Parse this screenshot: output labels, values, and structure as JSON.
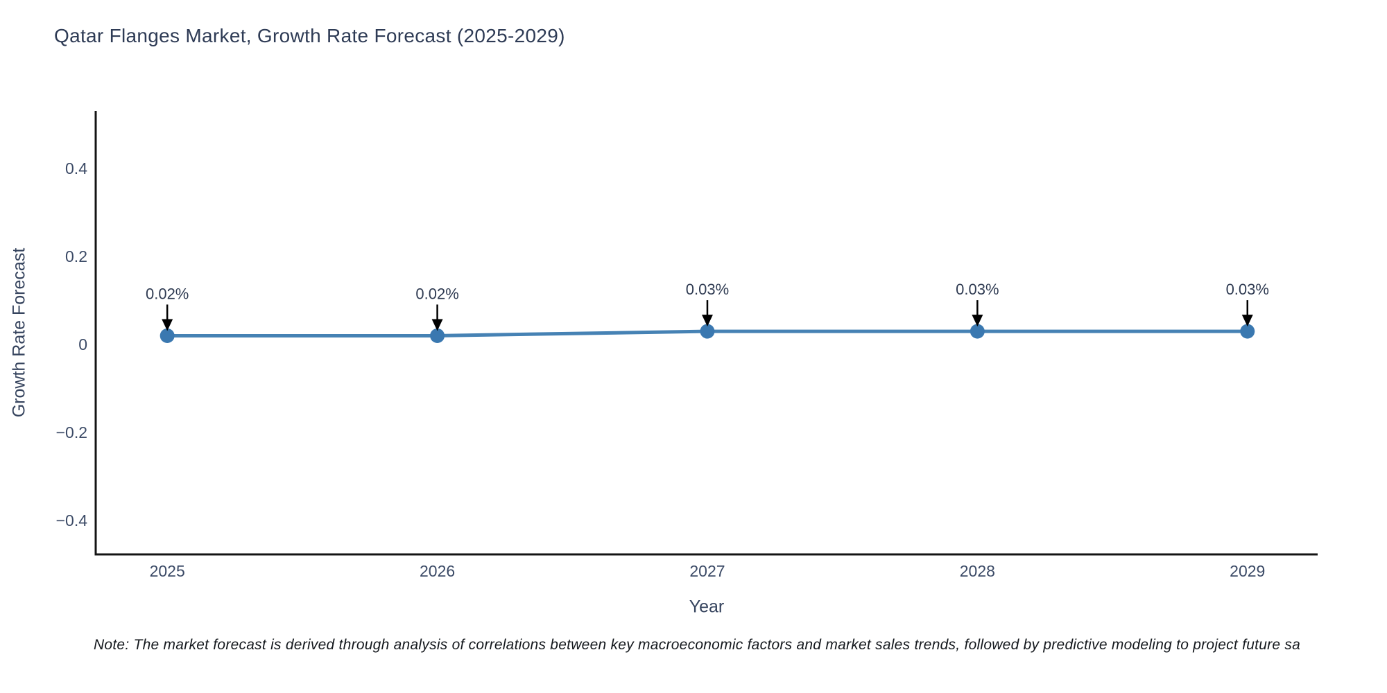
{
  "title": "Qatar Flanges Market, Growth Rate Forecast (2025-2029)",
  "note": "Note: The market forecast is derived through analysis of correlations between key macroeconomic factors and market sales trends, followed by predictive modeling to project future sa",
  "chart_data": {
    "type": "line",
    "title": "Qatar Flanges Market, Growth Rate Forecast (2025-2029)",
    "xlabel": "Year",
    "ylabel": "Growth Rate Forecast",
    "x": [
      2025,
      2026,
      2027,
      2028,
      2029
    ],
    "x_tick_labels": [
      "2025",
      "2026",
      "2027",
      "2028",
      "2029"
    ],
    "series": [
      {
        "name": "Growth Rate Forecast",
        "values": [
          0.02,
          0.02,
          0.03,
          0.03,
          0.03
        ],
        "point_labels": [
          "0.02%",
          "0.02%",
          "0.03%",
          "0.03%",
          "0.03%"
        ]
      }
    ],
    "y_ticks": [
      0.4,
      0.2,
      0,
      -0.2,
      -0.4
    ],
    "y_tick_labels": [
      "0.4",
      "0.2",
      "0",
      "−0.2",
      "−0.4"
    ],
    "xlim": [
      2024.735,
      2029.26
    ],
    "ylim": [
      -0.477,
      0.531
    ],
    "grid": false,
    "legend": false,
    "annotations_have_arrows": true,
    "colors": {
      "line": "#4682b4",
      "marker": "#3a78b0",
      "axis": "#141414",
      "arrow": "#000000",
      "title_text": "#2e3b55",
      "tick_text": "#3b4a66",
      "annotation_text": "#2f3b52",
      "note_text": "#14181d",
      "background": "#ffffff"
    }
  }
}
